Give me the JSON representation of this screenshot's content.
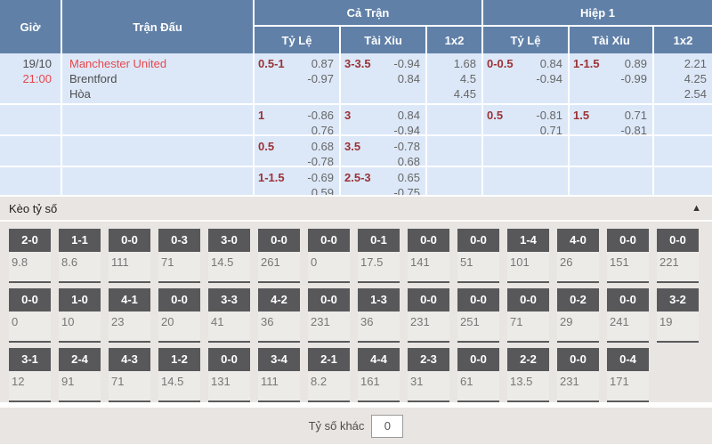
{
  "colors": {
    "header_bg": "#6080a8",
    "row_bg": "#dce8f8",
    "handicap_text": "#9b3236",
    "odds_text": "#666666",
    "red_text": "#e8474b",
    "chip_dark": "#58585a",
    "section_bg": "#e8e5e2"
  },
  "odds_table": {
    "headers": {
      "time": "Giờ",
      "match": "Trận Đấu",
      "full_match": "Cả Trận",
      "first_half": "Hiệp 1",
      "handicap": "Tỷ Lệ",
      "over_under": "Tài Xỉu",
      "one_x_two": "1x2"
    },
    "match": {
      "date": "19/10",
      "time": "21:00",
      "home": "Manchester United",
      "away": "Brentford",
      "draw": "Hòa"
    },
    "rows": [
      {
        "ft_handicap": {
          "line": "0.5-1",
          "over": "0.87",
          "under": "-0.97"
        },
        "ft_ou": {
          "line": "3-3.5",
          "over": "-0.94",
          "under": "0.84"
        },
        "ft_1x2": [
          "1.68",
          "4.5",
          "4.45"
        ],
        "h1_handicap": {
          "line": "0-0.5",
          "over": "0.84",
          "under": "-0.94"
        },
        "h1_ou": {
          "line": "1-1.5",
          "over": "0.89",
          "under": "-0.99"
        },
        "h1_1x2": [
          "2.21",
          "4.25",
          "2.54"
        ]
      },
      {
        "ft_handicap": {
          "line": "1",
          "over": "-0.86",
          "under": "0.76"
        },
        "ft_ou": {
          "line": "3",
          "over": "0.84",
          "under": "-0.94"
        },
        "ft_1x2": [
          "",
          "",
          ""
        ],
        "h1_handicap": {
          "line": "0.5",
          "over": "-0.81",
          "under": "0.71"
        },
        "h1_ou": {
          "line": "1.5",
          "over": "0.71",
          "under": "-0.81"
        },
        "h1_1x2": [
          "",
          "",
          ""
        ]
      },
      {
        "ft_handicap": {
          "line": "0.5",
          "over": "0.68",
          "under": "-0.78"
        },
        "ft_ou": {
          "line": "3.5",
          "over": "-0.78",
          "under": "0.68"
        },
        "ft_1x2": [
          "",
          "",
          ""
        ],
        "h1_handicap": {
          "line": "",
          "over": "",
          "under": ""
        },
        "h1_ou": {
          "line": "",
          "over": "",
          "under": ""
        },
        "h1_1x2": [
          "",
          "",
          ""
        ]
      },
      {
        "ft_handicap": {
          "line": "1-1.5",
          "over": "-0.69",
          "under": "0.59"
        },
        "ft_ou": {
          "line": "2.5-3",
          "over": "0.65",
          "under": "-0.75"
        },
        "ft_1x2": [
          "",
          "",
          ""
        ],
        "h1_handicap": {
          "line": "",
          "over": "",
          "under": ""
        },
        "h1_ou": {
          "line": "",
          "over": "",
          "under": ""
        },
        "h1_1x2": [
          "",
          "",
          ""
        ]
      }
    ]
  },
  "score_section": {
    "title": "Kèo tỷ số",
    "collapse_icon": "▲",
    "rows": [
      [
        {
          "score": "2-0",
          "odds": "9.8"
        },
        {
          "score": "1-1",
          "odds": "8.6"
        },
        {
          "score": "0-0",
          "odds": "111"
        },
        {
          "score": "0-3",
          "odds": "71"
        },
        {
          "score": "3-0",
          "odds": "14.5"
        },
        {
          "score": "0-0",
          "odds": "261"
        },
        {
          "score": "0-0",
          "odds": "0"
        },
        {
          "score": "0-1",
          "odds": "17.5"
        },
        {
          "score": "0-0",
          "odds": "141"
        },
        {
          "score": "0-0",
          "odds": "51"
        },
        {
          "score": "1-4",
          "odds": "101"
        },
        {
          "score": "4-0",
          "odds": "26"
        },
        {
          "score": "0-0",
          "odds": "151"
        },
        {
          "score": "0-0",
          "odds": "221"
        }
      ],
      [
        {
          "score": "0-0",
          "odds": "0"
        },
        {
          "score": "1-0",
          "odds": "10"
        },
        {
          "score": "4-1",
          "odds": "23"
        },
        {
          "score": "0-0",
          "odds": "20"
        },
        {
          "score": "3-3",
          "odds": "41"
        },
        {
          "score": "4-2",
          "odds": "36"
        },
        {
          "score": "0-0",
          "odds": "231"
        },
        {
          "score": "1-3",
          "odds": "36"
        },
        {
          "score": "0-0",
          "odds": "231"
        },
        {
          "score": "0-0",
          "odds": "251"
        },
        {
          "score": "0-0",
          "odds": "71"
        },
        {
          "score": "0-2",
          "odds": "29"
        },
        {
          "score": "0-0",
          "odds": "241"
        },
        {
          "score": "3-2",
          "odds": "19"
        }
      ],
      [
        {
          "score": "3-1",
          "odds": "12"
        },
        {
          "score": "2-4",
          "odds": "91"
        },
        {
          "score": "4-3",
          "odds": "71"
        },
        {
          "score": "1-2",
          "odds": "14.5"
        },
        {
          "score": "0-0",
          "odds": "131"
        },
        {
          "score": "3-4",
          "odds": "111"
        },
        {
          "score": "2-1",
          "odds": "8.2"
        },
        {
          "score": "4-4",
          "odds": "161"
        },
        {
          "score": "2-3",
          "odds": "31"
        },
        {
          "score": "0-0",
          "odds": "61"
        },
        {
          "score": "2-2",
          "odds": "13.5"
        },
        {
          "score": "0-0",
          "odds": "231"
        },
        {
          "score": "0-4",
          "odds": "171"
        }
      ]
    ],
    "other_score_label": "Tỷ số khác",
    "other_score_value": "0"
  }
}
